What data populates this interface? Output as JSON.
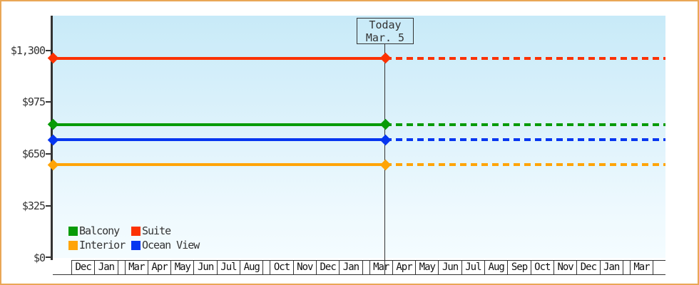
{
  "chart_data": {
    "type": "line",
    "title": "",
    "description": "Cruise cabin price history by category; solid lines are past prices, dashed lines are projected/future after today marker",
    "ylim": [
      0,
      1300
    ],
    "y_ticks": [
      "$1,300",
      "$975",
      "$650",
      "$325",
      "$0"
    ],
    "x_months": [
      "",
      "Dec",
      "Jan",
      "",
      "Mar",
      "Apr",
      "May",
      "Jun",
      "Jul",
      "Aug",
      "",
      "Oct",
      "Nov",
      "Dec",
      "Jan",
      "",
      "Mar",
      "Apr",
      "May",
      "Jun",
      "Jul",
      "Aug",
      "Sep",
      "Oct",
      "Nov",
      "Dec",
      "Jan",
      "",
      "Mar",
      ""
    ],
    "today": {
      "line1": "Today",
      "line2": "Mar. 5"
    },
    "future_style": "dashed",
    "grid": false,
    "series": [
      {
        "name": "Suite",
        "color": "#fc3203",
        "value": 1250
      },
      {
        "name": "Balcony",
        "color": "#089b08",
        "value": 835
      },
      {
        "name": "Ocean View",
        "color": "#0636f0",
        "value": 740
      },
      {
        "name": "Interior",
        "color": "#ffa408",
        "value": 583
      }
    ],
    "legend_rows": [
      [
        "Balcony",
        "Suite"
      ],
      [
        "Interior",
        "Ocean View"
      ]
    ],
    "legend_position": "bottom-left"
  },
  "colors": {
    "frame_border": "#e9a756",
    "axis": "#333333",
    "text": "#333333",
    "plot_bg_top": "#c8eaf8",
    "plot_bg_bottom": "#f4fcff",
    "background": "#ffffff"
  }
}
